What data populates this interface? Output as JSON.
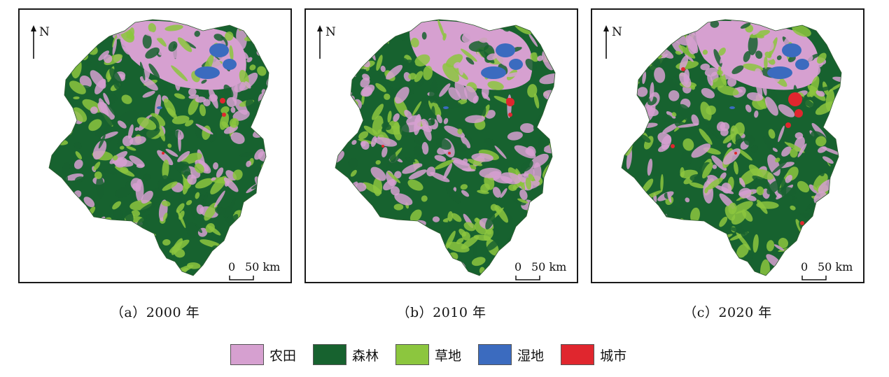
{
  "panels": [
    {
      "caption": "（a）2000 年",
      "north": "N",
      "scale_zero": "0",
      "scale_dist": "50 km"
    },
    {
      "caption": "（b）2010 年",
      "north": "N",
      "scale_zero": "0",
      "scale_dist": "50 km"
    },
    {
      "caption": "（c）2020 年",
      "north": "N",
      "scale_zero": "0",
      "scale_dist": "50 km"
    }
  ],
  "legend": [
    {
      "label": "农田",
      "color": "#d6a0d0"
    },
    {
      "label": "森林",
      "color": "#17622f"
    },
    {
      "label": "草地",
      "color": "#8cc63e"
    },
    {
      "label": "湿地",
      "color": "#3b6bbf"
    },
    {
      "label": "城市",
      "color": "#e0262e"
    }
  ]
}
